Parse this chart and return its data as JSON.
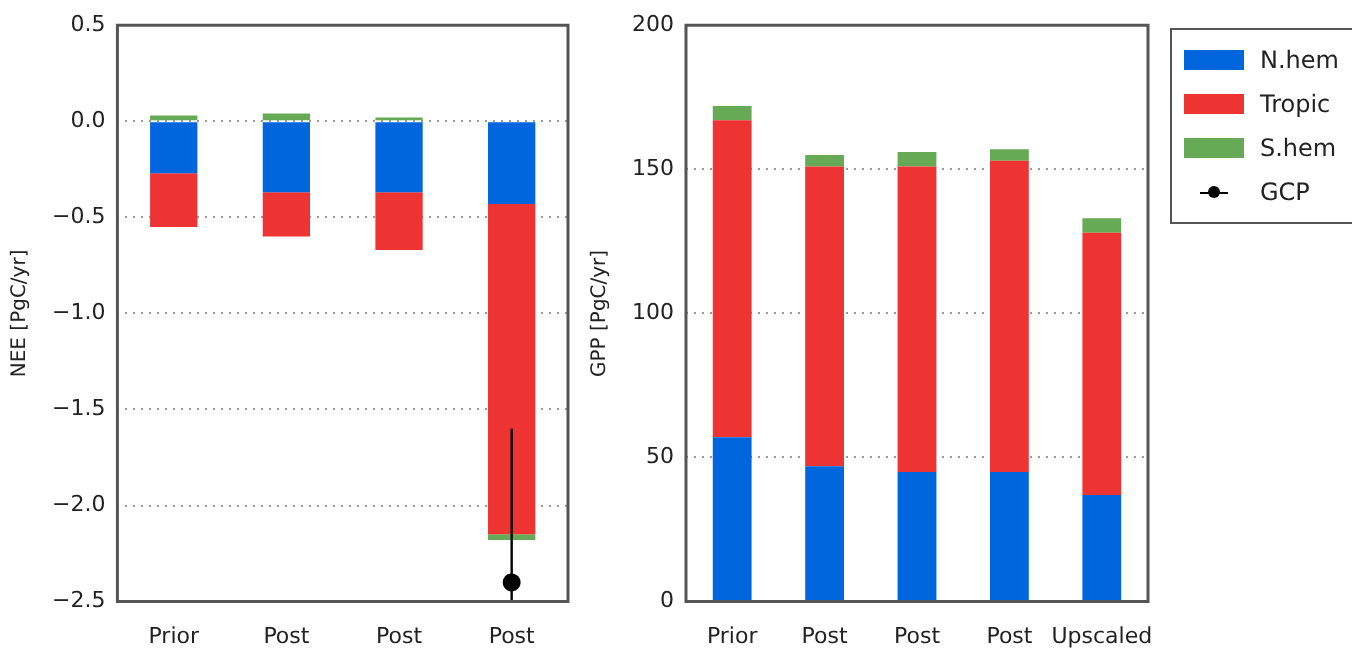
{
  "chart_data": [
    {
      "type": "bar",
      "stacked": true,
      "categories": [
        "Prior",
        "Post",
        "Post",
        "Post"
      ],
      "ylabel": "NEE [PgC/yr]",
      "ylim": [
        -2.5,
        0.5
      ],
      "yticks": [
        {
          "value": -2.5,
          "label": "−2.5"
        },
        {
          "value": -2,
          "label": "−2.0"
        },
        {
          "value": -1.5,
          "label": "−1.5"
        },
        {
          "value": -1,
          "label": "−1.0"
        },
        {
          "value": -0.5,
          "label": "−0.5"
        },
        {
          "value": 0,
          "label": "0.0"
        },
        0.5
      ],
      "grid": "y",
      "legend": "right",
      "series": [
        {
          "color": "#0066dd",
          "values": [
            -0.27,
            -0.37,
            -0.37,
            -0.43
          ]
        },
        {
          "color": "#ee3333",
          "values": [
            -0.28,
            -0.23,
            -0.3,
            -1.72
          ]
        },
        {
          "color": "#66aa55",
          "values": [
            0.03,
            0.04,
            0.02,
            -0.03
          ]
        },
        {
          "name": "GCP",
          "type": "scatter",
          "color": "#000000",
          "marker": "circle",
          "values": [
            null,
            null,
            null,
            -2.4
          ],
          "errors": [
            null,
            null,
            null,
            [
              -2.5,
              -1.6
            ]
          ]
        }
      ]
    },
    {
      "type": "bar",
      "stacked": true,
      "categories": [
        "Prior",
        "Post",
        "Post",
        "Post",
        "Upscaled"
      ],
      "ylabel": "GPP [PgC/yr]",
      "ylim": [
        0,
        200
      ],
      "yticks": [
        0,
        50,
        100,
        150,
        200
      ],
      "grid": "y",
      "legend": "right",
      "series": [
        {
          "name": "N.hem",
          "color": "#0066dd",
          "values": [
            57,
            47,
            45,
            45,
            37
          ]
        },
        {
          "name": "Tropic",
          "color": "#ee3333",
          "values": [
            110,
            104,
            106,
            108,
            91
          ]
        },
        {
          "name": "S.hem",
          "color": "#66aa55",
          "values": [
            5,
            4,
            5,
            4,
            5
          ]
        }
      ]
    }
  ]
}
